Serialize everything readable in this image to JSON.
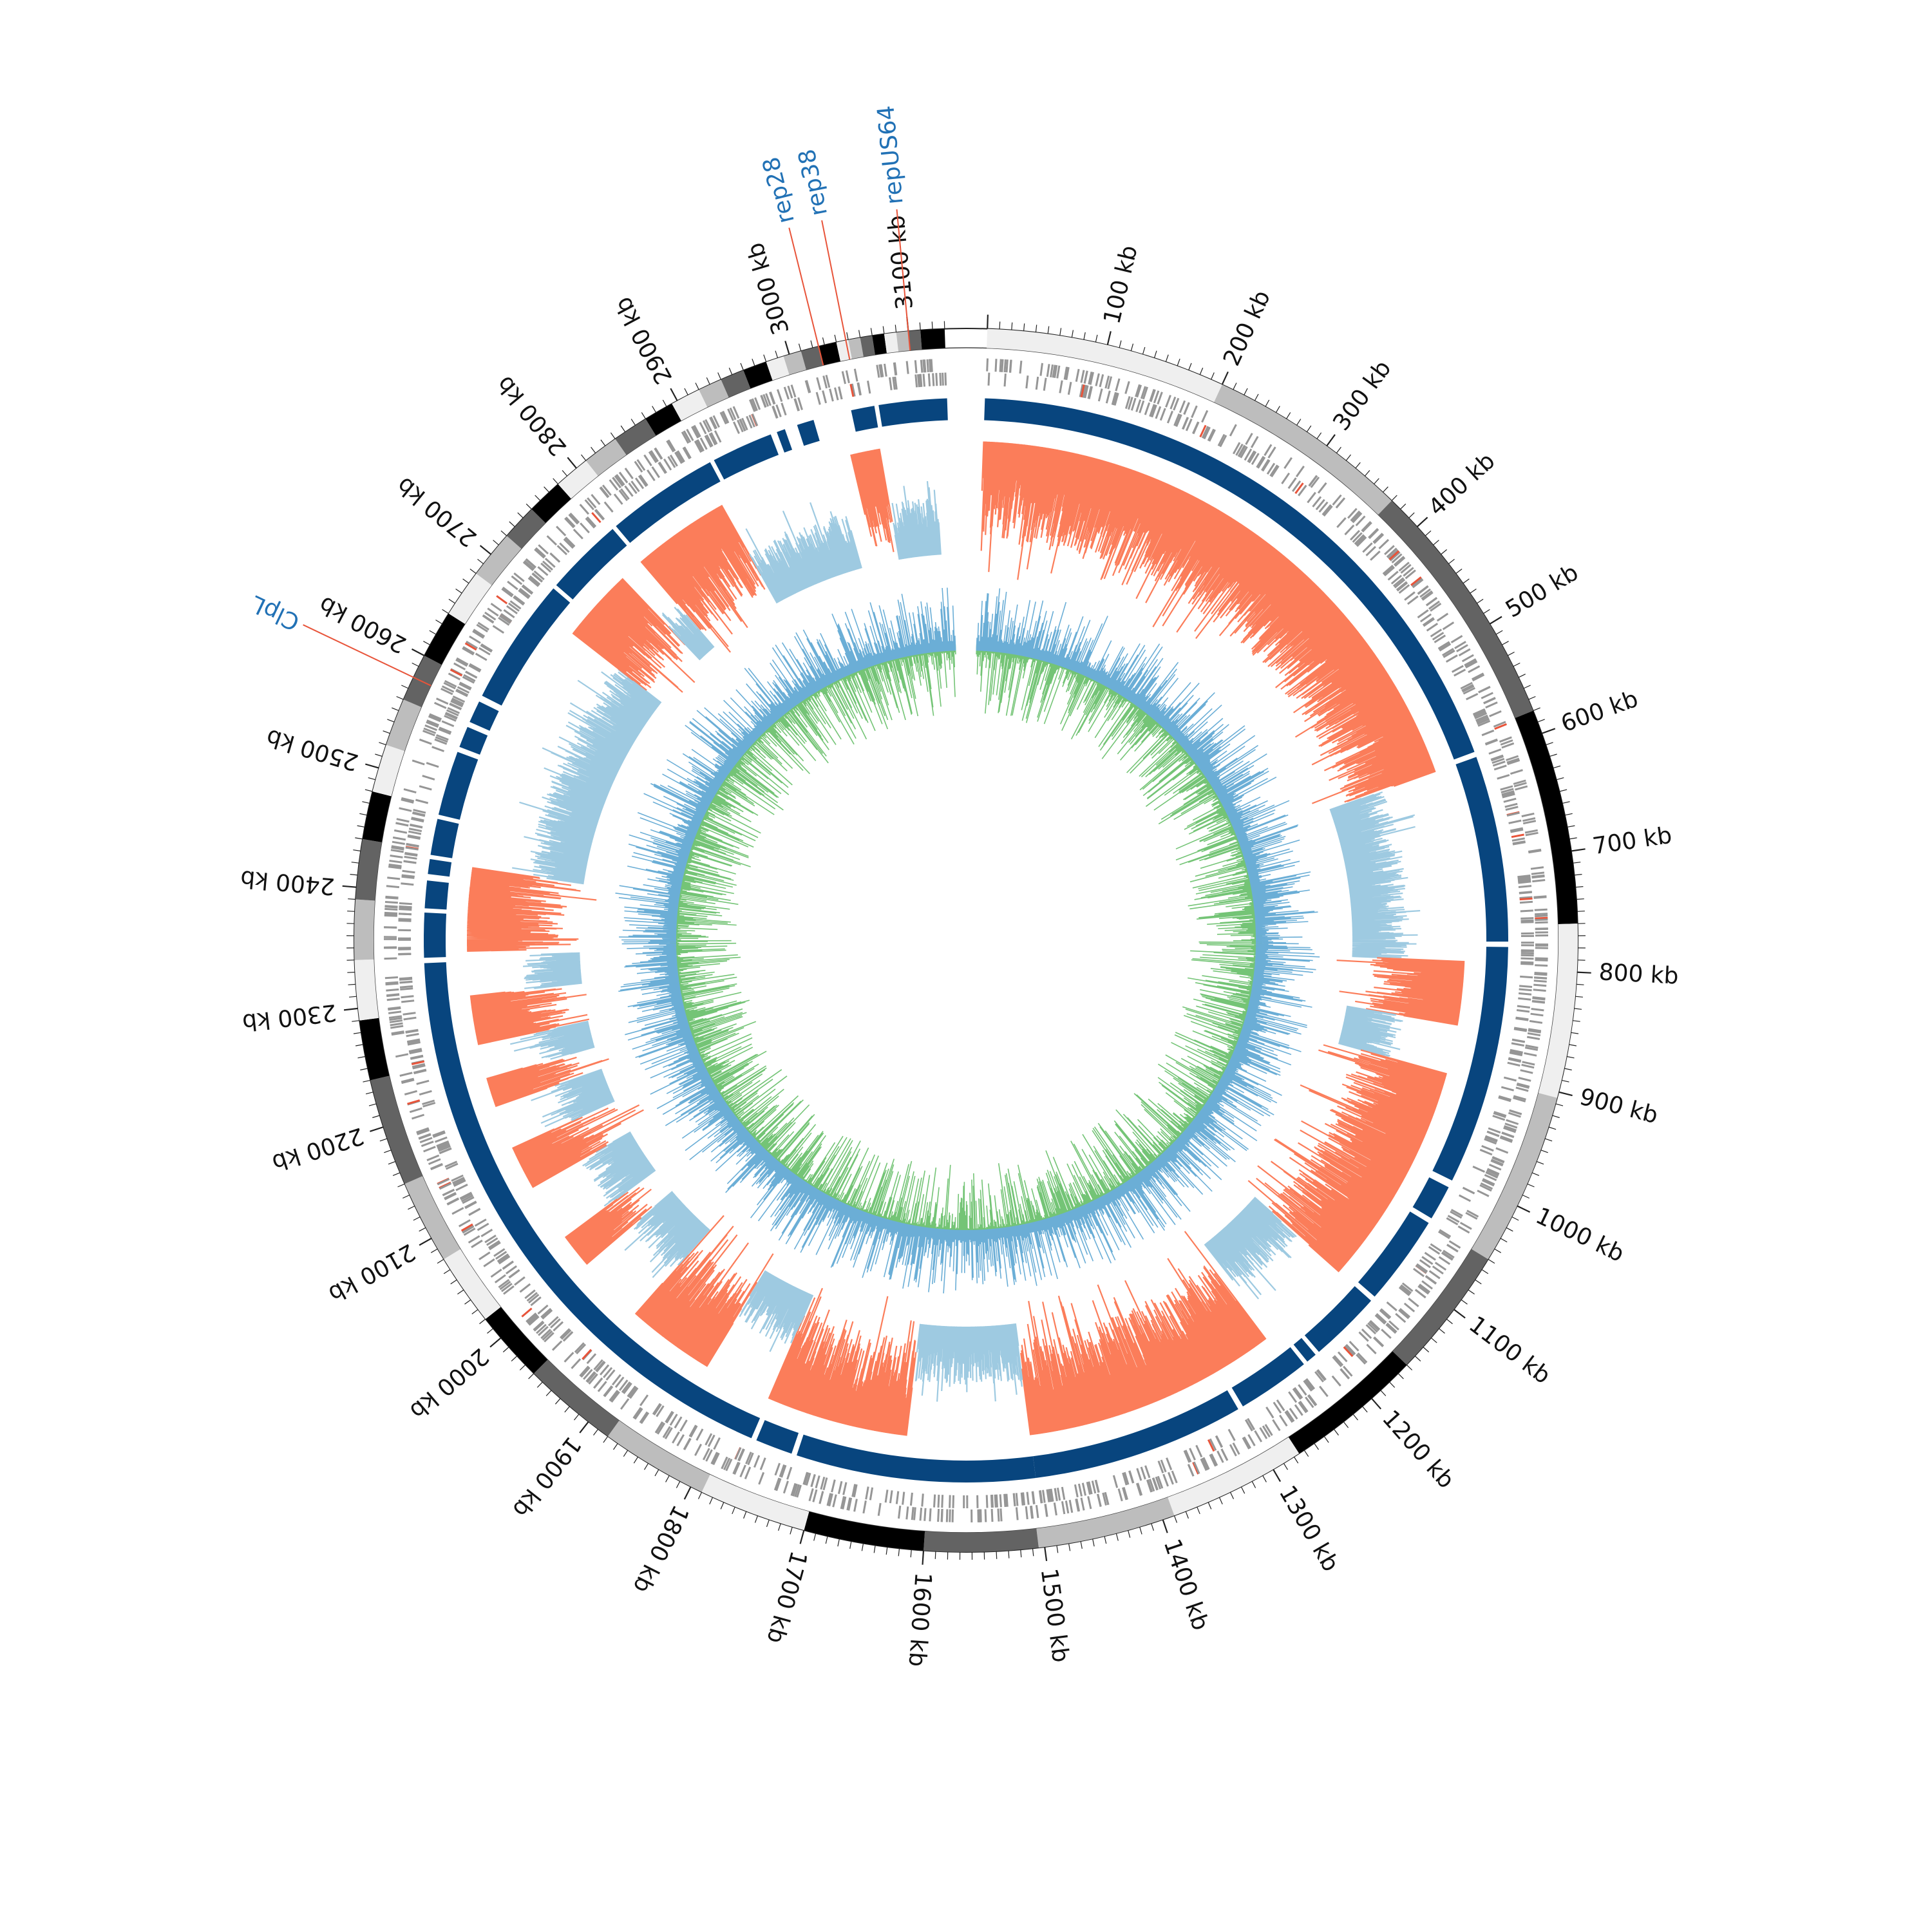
{
  "chart_data": {
    "type": "circular-genome-map",
    "title": "",
    "genome_length_kb": 3130,
    "tick_unit": "kb",
    "tick_labels": [
      "100 kb",
      "200 kb",
      "300 kb",
      "400 kb",
      "500 kb",
      "600 kb",
      "700 kb",
      "800 kb",
      "900 kb",
      "1000 kb",
      "1100 kb",
      "1200 kb",
      "1300 kb",
      "1400 kb",
      "1500 kb",
      "1600 kb",
      "1700 kb",
      "1800 kb",
      "1900 kb",
      "2000 kb",
      "2100 kb",
      "2200 kb",
      "2300 kb",
      "2400 kb",
      "2500 kb",
      "2600 kb",
      "2700 kb",
      "2800 kb",
      "2900 kb",
      "3000 kb",
      "3100 kb"
    ],
    "annotations": [
      {
        "label": "ClpL",
        "position_kb": 2580
      },
      {
        "label": "rep28",
        "position_kb": 3025
      },
      {
        "label": "rep38",
        "position_kb": 3048
      },
      {
        "label": "repUS64",
        "position_kb": 3100
      }
    ],
    "contig_band_shades": [
      "#efefef",
      "#bdbdbd",
      "#636363",
      "#000000",
      "#efefef",
      "#bdbdbd",
      "#636363",
      "#000000"
    ],
    "contig_bands_kb": [
      [
        0,
        200
      ],
      [
        200,
        370
      ],
      [
        370,
        580
      ],
      [
        580,
        760
      ],
      [
        760,
        905
      ],
      [
        905,
        1050
      ],
      [
        1050,
        1160
      ],
      [
        1160,
        1275
      ],
      [
        1275,
        1390
      ],
      [
        1390,
        1505
      ],
      [
        1505,
        1600
      ],
      [
        1600,
        1700
      ],
      [
        1700,
        1790
      ],
      [
        1790,
        1880
      ],
      [
        1880,
        1960
      ],
      [
        1960,
        2020
      ],
      [
        2020,
        2080
      ],
      [
        2080,
        2150
      ],
      [
        2150,
        2240
      ],
      [
        2240,
        2290
      ],
      [
        2290,
        2340
      ],
      [
        2340,
        2390
      ],
      [
        2390,
        2440
      ],
      [
        2440,
        2480
      ],
      [
        2480,
        2520
      ],
      [
        2520,
        2560
      ],
      [
        2560,
        2600
      ],
      [
        2600,
        2640
      ],
      [
        2640,
        2680
      ],
      [
        2680,
        2720
      ],
      [
        2720,
        2750
      ],
      [
        2750,
        2780
      ],
      [
        2780,
        2810
      ],
      [
        2810,
        2840
      ],
      [
        2840,
        2870
      ],
      [
        2870,
        2895
      ],
      [
        2895,
        2920
      ],
      [
        2920,
        2940
      ],
      [
        2940,
        2960
      ],
      [
        2960,
        2980
      ],
      [
        2980,
        2995
      ],
      [
        2995,
        3010
      ],
      [
        3010,
        3025
      ],
      [
        3025,
        3040
      ],
      [
        3040,
        3050
      ],
      [
        3050,
        3060
      ],
      [
        3060,
        3070
      ],
      [
        3070,
        3080
      ],
      [
        3080,
        3090
      ],
      [
        3090,
        3100
      ],
      [
        3100,
        3110
      ],
      [
        3110,
        3130
      ]
    ],
    "alignment_blocks_kb": [
      [
        0,
        595
      ],
      [
        600,
        775
      ],
      [
        780,
        1005
      ],
      [
        1012,
        1045
      ],
      [
        1050,
        1135
      ],
      [
        1140,
        1208
      ],
      [
        1212,
        1222
      ],
      [
        1226,
        1295
      ],
      [
        1300,
        1500
      ],
      [
        1500,
        1725
      ],
      [
        1730,
        1765
      ],
      [
        1770,
        2335
      ],
      [
        2340,
        2382
      ],
      [
        2386,
        2412
      ],
      [
        2418,
        2432
      ],
      [
        2436,
        2470
      ],
      [
        2474,
        2535
      ],
      [
        2540,
        2560
      ],
      [
        2565,
        2586
      ],
      [
        2592,
        2712
      ],
      [
        2716,
        2790
      ],
      [
        2794,
        2900
      ],
      [
        2904,
        2962
      ],
      [
        2968,
        2976
      ],
      [
        2988,
        3004
      ],
      [
        3040,
        3062
      ],
      [
        3066,
        3130
      ]
    ],
    "coverage_segments_kb": [
      {
        "start": 0,
        "end": 600,
        "class": "high"
      },
      {
        "start": 600,
        "end": 795,
        "class": "low"
      },
      {
        "start": 795,
        "end": 860,
        "class": "high"
      },
      {
        "start": 860,
        "end": 910,
        "class": "low"
      },
      {
        "start": 910,
        "end": 1140,
        "class": "high"
      },
      {
        "start": 1140,
        "end": 1230,
        "class": "low"
      },
      {
        "start": 1240,
        "end": 1500,
        "class": "high"
      },
      {
        "start": 1500,
        "end": 1625,
        "class": "low"
      },
      {
        "start": 1625,
        "end": 1770,
        "class": "high"
      },
      {
        "start": 1770,
        "end": 1840,
        "class": "low"
      },
      {
        "start": 1840,
        "end": 1930,
        "class": "high"
      },
      {
        "start": 1930,
        "end": 2000,
        "class": "low"
      },
      {
        "start": 2000,
        "end": 2035,
        "class": "high"
      },
      {
        "start": 2035,
        "end": 2095,
        "class": "low"
      },
      {
        "start": 2095,
        "end": 2140,
        "class": "high"
      },
      {
        "start": 2140,
        "end": 2185,
        "class": "low"
      },
      {
        "start": 2185,
        "end": 2215,
        "class": "high"
      },
      {
        "start": 2215,
        "end": 2250,
        "class": "low"
      },
      {
        "start": 2250,
        "end": 2300,
        "class": "high"
      },
      {
        "start": 2300,
        "end": 2340,
        "class": "low"
      },
      {
        "start": 2345,
        "end": 2430,
        "class": "high"
      },
      {
        "start": 2430,
        "end": 2690,
        "class": "low"
      },
      {
        "start": 2690,
        "end": 2765,
        "class": "high"
      },
      {
        "start": 2765,
        "end": 2790,
        "class": "low"
      },
      {
        "start": 2790,
        "end": 2890,
        "class": "high"
      },
      {
        "start": 2890,
        "end": 3010,
        "class": "low"
      },
      {
        "start": 3030,
        "end": 3060,
        "class": "high"
      },
      {
        "start": 3060,
        "end": 3115,
        "class": "low"
      }
    ],
    "colors": {
      "alignment": "#08457e",
      "high_coverage": "#fb7d5a",
      "low_coverage": "#9ecae1",
      "inner_series_a": "#6baed6",
      "inner_series_b": "#74c476",
      "annotation_text": "#2171b5",
      "annotation_line": "#e8543a",
      "gene": "#969696"
    },
    "grid": false,
    "legend": "none"
  }
}
